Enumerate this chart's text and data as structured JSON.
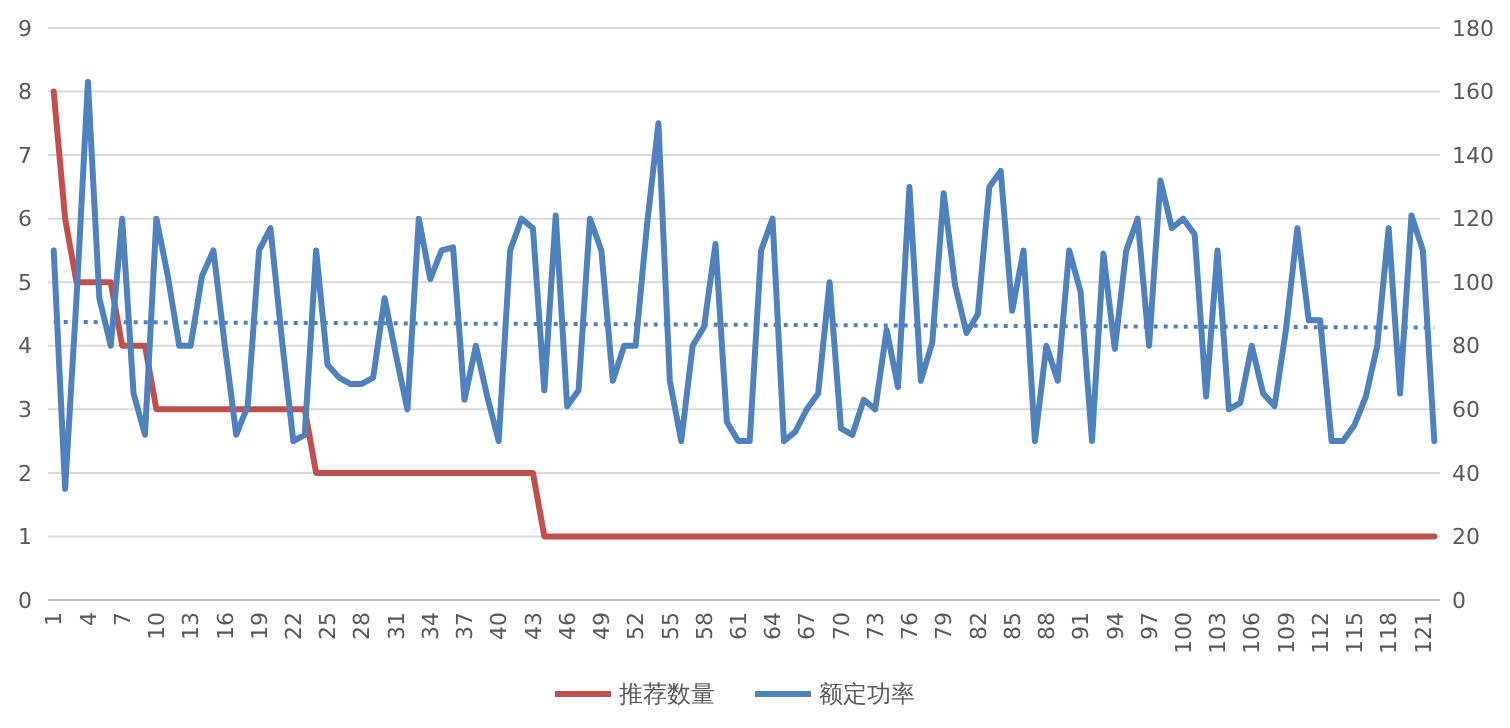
{
  "chart_data": {
    "type": "line",
    "x": [
      1,
      2,
      3,
      4,
      5,
      6,
      7,
      8,
      9,
      10,
      11,
      12,
      13,
      14,
      15,
      16,
      17,
      18,
      19,
      20,
      21,
      22,
      23,
      24,
      25,
      26,
      27,
      28,
      29,
      30,
      31,
      32,
      33,
      34,
      35,
      36,
      37,
      38,
      39,
      40,
      41,
      42,
      43,
      44,
      45,
      46,
      47,
      48,
      49,
      50,
      51,
      52,
      53,
      54,
      55,
      56,
      57,
      58,
      59,
      60,
      61,
      62,
      63,
      64,
      65,
      66,
      67,
      68,
      69,
      70,
      71,
      72,
      73,
      74,
      75,
      76,
      77,
      78,
      79,
      80,
      81,
      82,
      83,
      84,
      85,
      86,
      87,
      88,
      89,
      90,
      91,
      92,
      93,
      94,
      95,
      96,
      97,
      98,
      99,
      100,
      101,
      102,
      103,
      104,
      105,
      106,
      107,
      108,
      109,
      110,
      111,
      112,
      113,
      114,
      115,
      116,
      117,
      118,
      119,
      120,
      121,
      122
    ],
    "xlim": [
      0.5,
      122.5
    ],
    "xticks": [
      1,
      4,
      7,
      10,
      13,
      16,
      19,
      22,
      25,
      28,
      31,
      34,
      37,
      40,
      43,
      46,
      49,
      52,
      55,
      58,
      61,
      64,
      67,
      70,
      73,
      76,
      79,
      82,
      85,
      88,
      91,
      94,
      97,
      100,
      103,
      106,
      109,
      112,
      115,
      118,
      121
    ],
    "ylim": [
      0,
      9
    ],
    "yticks": [
      0,
      1,
      2,
      3,
      4,
      5,
      6,
      7,
      8,
      9
    ],
    "y2lim": [
      0,
      180
    ],
    "y2ticks": [
      0,
      20,
      40,
      60,
      80,
      100,
      120,
      140,
      160,
      180
    ],
    "grid": "y",
    "legend": "bottom",
    "line_style": "solid",
    "marker": "none",
    "series": [
      {
        "name": "推荐数量",
        "color": "#c0504d",
        "values": [
          8,
          6,
          5,
          5,
          5,
          5,
          4,
          4,
          4,
          3,
          3,
          3,
          3,
          3,
          3,
          3,
          3,
          3,
          3,
          3,
          3,
          3,
          3,
          2,
          2,
          2,
          2,
          2,
          2,
          2,
          2,
          2,
          2,
          2,
          2,
          2,
          2,
          2,
          2,
          2,
          2,
          2,
          2,
          1,
          1,
          1,
          1,
          1,
          1,
          1,
          1,
          1,
          1,
          1,
          1,
          1,
          1,
          1,
          1,
          1,
          1,
          1,
          1,
          1,
          1,
          1,
          1,
          1,
          1,
          1,
          1,
          1,
          1,
          1,
          1,
          1,
          1,
          1,
          1,
          1,
          1,
          1,
          1,
          1,
          1,
          1,
          1,
          1,
          1,
          1,
          1,
          1,
          1,
          1,
          1,
          1,
          1,
          1,
          1,
          1,
          1,
          1,
          1,
          1,
          1,
          1,
          1,
          1,
          1,
          1,
          1,
          1,
          1,
          1,
          1,
          1,
          1,
          1,
          1,
          1,
          1,
          1
        ]
      },
      {
        "name": "额定功率",
        "color": "#4f81bd",
        "axis": "y2",
        "values": [
          110,
          35,
          95,
          163,
          95,
          80,
          120,
          65,
          52,
          120,
          102,
          80,
          80,
          102,
          110,
          80,
          52,
          61,
          110,
          117,
          82,
          50,
          52,
          110,
          74,
          70,
          68,
          68,
          70,
          95,
          77,
          60,
          120,
          101,
          110,
          111,
          63,
          80,
          64,
          50,
          110,
          120,
          117,
          66,
          121,
          61,
          66,
          120,
          110,
          69,
          80,
          80,
          118,
          150,
          69,
          50,
          80,
          86,
          112,
          56,
          50,
          50,
          110,
          120,
          50,
          53,
          60,
          65,
          100,
          54,
          52,
          63,
          60,
          85,
          67,
          130,
          69,
          81,
          128,
          99,
          84,
          90,
          130,
          135,
          91,
          110,
          50,
          80,
          69,
          110,
          97,
          50,
          109,
          79,
          110,
          120,
          80,
          132,
          117,
          120,
          115,
          64,
          110,
          60,
          62,
          80,
          65,
          61,
          85,
          117,
          88,
          88,
          50,
          50,
          55,
          64,
          80,
          117,
          65,
          121,
          110,
          50
        ]
      },
      {
        "type": "line",
        "color": "#4f81bd",
        "axis": "y2",
        "line_style": "dotted",
        "x": [
          1,
          122
        ],
        "values": [
          87.5,
          85.7
        ]
      }
    ]
  }
}
